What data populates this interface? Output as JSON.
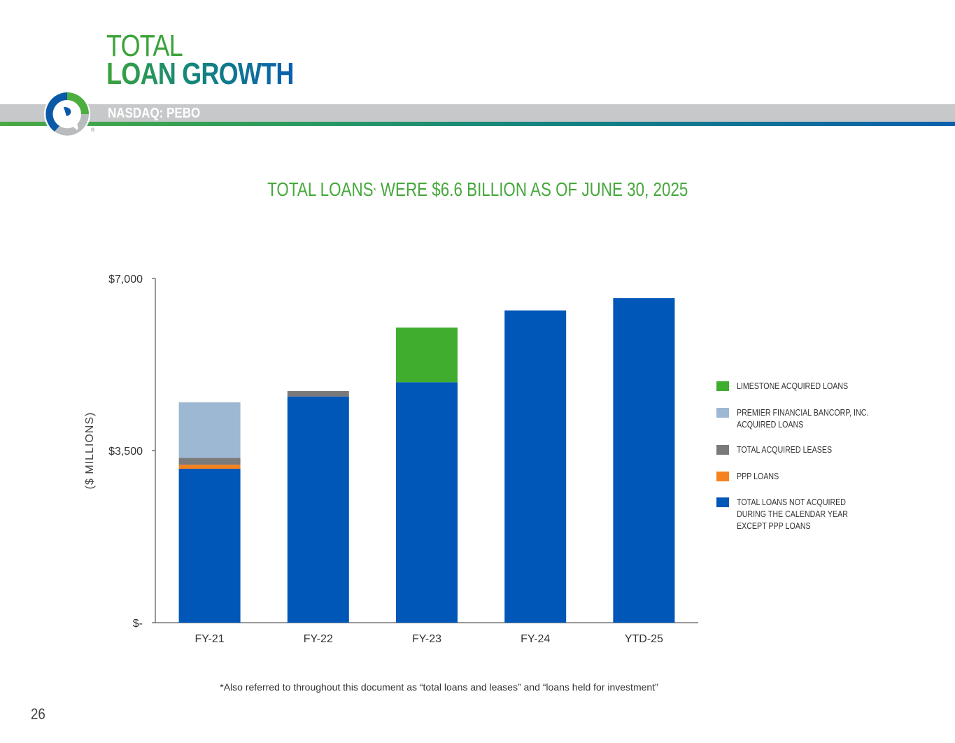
{
  "header": {
    "title_line1": "TOTAL",
    "title_line2": "LOAN GROWTH",
    "ticker": "NASDAQ: PEBO"
  },
  "headline": {
    "text_before": "TOTAL LOANS",
    "asterisk": "*",
    "text_after": " WERE $6.6 BILLION AS OF JUNE 30, 2025"
  },
  "chart_data": {
    "type": "bar",
    "stacked": true,
    "ylabel": "($ MILLIONS)",
    "xlabel": "",
    "ylim": [
      0,
      7000
    ],
    "yticks": [
      0,
      3500,
      7000
    ],
    "ytick_labels": [
      "$-",
      "$3,500",
      "$7,000"
    ],
    "categories": [
      "FY-21",
      "FY-22",
      "FY-23",
      "FY-24",
      "YTD-25"
    ],
    "series": [
      {
        "name": "TOTAL LOANS NOT ACQUIRED\nDURING THE CALENDAR YEAR\nEXCEPT PPP LOANS",
        "color": "#0057b8",
        "values": [
          3130,
          4600,
          4890,
          6350,
          6600
        ]
      },
      {
        "name": "PPP LOANS",
        "color": "#f5821f",
        "values": [
          80,
          0,
          0,
          0,
          0
        ]
      },
      {
        "name": "TOTAL ACQUIRED LEASES",
        "color": "#7a7a7a",
        "values": [
          140,
          110,
          0,
          0,
          0
        ]
      },
      {
        "name": "PREMIER FINANCIAL BANCORP, INC.\n ACQUIRED LOANS",
        "color": "#9db8d2",
        "values": [
          1130,
          0,
          0,
          0,
          0
        ]
      },
      {
        "name": "LIMESTONE ACQUIRED LOANS",
        "color": "#41ad2f",
        "values": [
          0,
          0,
          1110,
          0,
          0
        ]
      }
    ],
    "legend_order": [
      "LIMESTONE ACQUIRED LOANS",
      "PREMIER FINANCIAL BANCORP, INC.\n ACQUIRED LOANS",
      "TOTAL ACQUIRED LEASES",
      "PPP LOANS",
      "TOTAL LOANS NOT ACQUIRED\nDURING THE CALENDAR YEAR\nEXCEPT PPP LOANS"
    ],
    "legend_position": "right"
  },
  "footnote": "*Also referred to throughout this document as “total loans and leases” and “loans held for investment”",
  "page_number": "26"
}
